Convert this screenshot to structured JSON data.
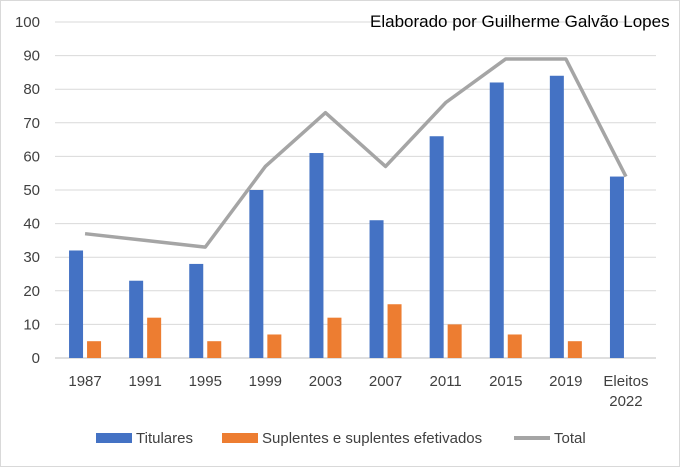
{
  "chart_data": {
    "type": "bar",
    "annotation": "Elaborado por Guilherme Galvão Lopes",
    "categories": [
      [
        "1987"
      ],
      [
        "1991"
      ],
      [
        "1995"
      ],
      [
        "1999"
      ],
      [
        "2003"
      ],
      [
        "2007"
      ],
      [
        "2011"
      ],
      [
        "2015"
      ],
      [
        "2019"
      ],
      [
        "Eleitos",
        "2022"
      ]
    ],
    "series": [
      {
        "name": "Titulares",
        "kind": "bar",
        "color": "#4472c4",
        "values": [
          32,
          23,
          28,
          50,
          61,
          41,
          66,
          82,
          84,
          54
        ]
      },
      {
        "name": "Suplentes e suplentes efetivados",
        "kind": "bar",
        "color": "#ed7d31",
        "values": [
          5,
          12,
          5,
          7,
          12,
          16,
          10,
          7,
          5,
          null
        ]
      },
      {
        "name": "Total",
        "kind": "line",
        "color": "#a5a5a5",
        "values": [
          37,
          35,
          33,
          57,
          73,
          57,
          76,
          89,
          89,
          54
        ]
      }
    ],
    "y_ticks": [
      "0",
      "10",
      "20",
      "30",
      "40",
      "50",
      "60",
      "70",
      "80",
      "90",
      "100"
    ],
    "ylim": [
      0,
      100
    ],
    "grid": true,
    "legend_position": "bottom"
  }
}
